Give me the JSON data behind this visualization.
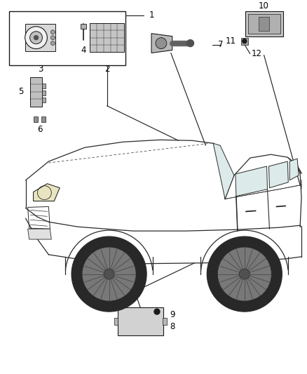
{
  "bg_color": "#ffffff",
  "line_color": "#1a1a1a",
  "fig_width": 4.38,
  "fig_height": 5.33,
  "dpi": 100,
  "car_ec": "#2a2a2a",
  "car_lw": 0.9
}
